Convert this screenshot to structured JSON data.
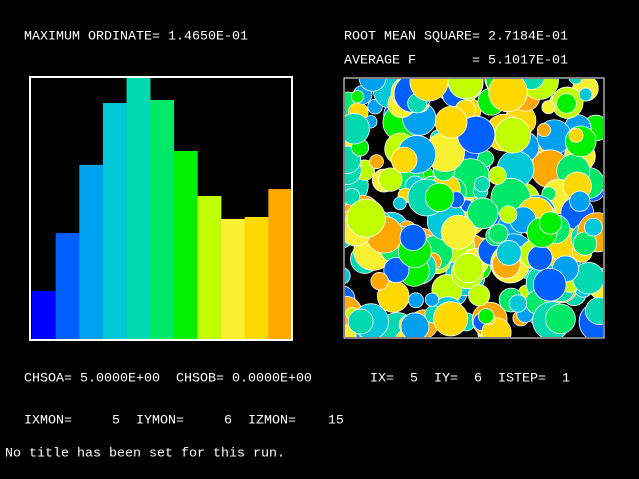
{
  "header": {
    "max_ordinate": "MAXIMUM ORDINATE= 1.4650E-01",
    "rms": "ROOT MEAN SQUARE= 2.7184E-01",
    "average": "AVERAGE F       = 5.1017E-01"
  },
  "chart_data": {
    "type": "bar",
    "values": [
      0.0274,
      0.0598,
      0.0979,
      0.1325,
      0.1465,
      0.1342,
      0.1057,
      0.0805,
      0.0677,
      0.0688,
      0.0844
    ],
    "colors": [
      "#0000ff",
      "#0060ff",
      "#00a0f0",
      "#00c8d8",
      "#00d8b0",
      "#00e868",
      "#00f000",
      "#c0ff00",
      "#f8f030",
      "#ffd800",
      "#ffa800"
    ],
    "ylim": [
      0,
      0.1465
    ]
  },
  "status": {
    "chso": "CHSOA= 5.0000E+00  CHSOB= 0.0000E+00",
    "ixy": "IX=  5  IY=  6  ISTEP=  1",
    "mon": "IXMON=     5  IYMON=     6  IZMON=    15",
    "title": "No title has been set for this run."
  }
}
